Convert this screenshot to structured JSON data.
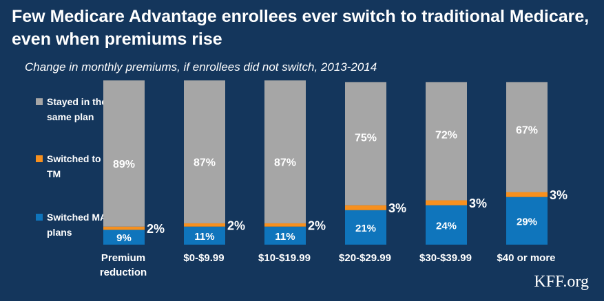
{
  "header": {
    "title": "Few Medicare Advantage enrollees ever switch to traditional Medicare, even when premiums rise",
    "subtitle": "Change in monthly premiums, if enrollees did not switch, 2013-2014"
  },
  "source": "KFF.org",
  "colors": {
    "background": "#14365c",
    "stayed": "#a6a6a6",
    "switched_tm": "#f7901e",
    "switched_ma": "#0f75bc"
  },
  "chart_data": {
    "type": "bar",
    "stacked": true,
    "categories": [
      "Premium reduction",
      "$0-$9.99",
      "$10-$19.99",
      "$20-$29.99",
      "$30-$39.99",
      "$40 or more"
    ],
    "ylim": [
      0,
      100
    ],
    "legend_position": "left",
    "series": [
      {
        "key": "switched_ma",
        "name": "Switched MA plans",
        "values": [
          9,
          11,
          11,
          21,
          24,
          29
        ],
        "labels": [
          "9%",
          "11%",
          "11%",
          "21%",
          "24%",
          "29%"
        ]
      },
      {
        "key": "switched_tm",
        "name": "Switched to TM",
        "values": [
          2,
          2,
          2,
          3,
          3,
          3
        ],
        "labels": [
          "2%",
          "2%",
          "2%",
          "3%",
          "3%",
          "3%"
        ]
      },
      {
        "key": "stayed",
        "name": "Stayed in the same plan",
        "values": [
          89,
          87,
          87,
          75,
          72,
          67
        ],
        "labels": [
          "89%",
          "87%",
          "87%",
          "75%",
          "72%",
          "67%"
        ]
      }
    ]
  }
}
